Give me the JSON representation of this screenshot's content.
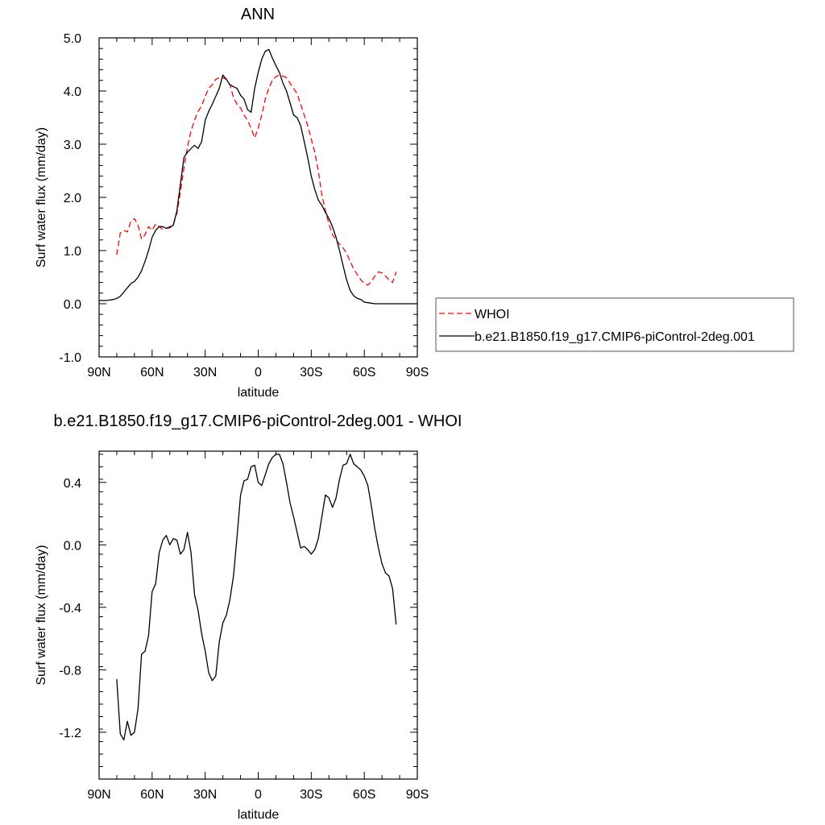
{
  "chart_data": [
    {
      "type": "line",
      "title": "ANN",
      "xlabel": "latitude",
      "ylabel": "Surf water flux (mm/day)",
      "xlim": [
        90,
        -90
      ],
      "ylim": [
        -1.0,
        5.0
      ],
      "x_ticks": [
        {
          "value": 90,
          "label": "90N"
        },
        {
          "value": 60,
          "label": "60N"
        },
        {
          "value": 30,
          "label": "30N"
        },
        {
          "value": 0,
          "label": "0"
        },
        {
          "value": -30,
          "label": "30S"
        },
        {
          "value": -60,
          "label": "60S"
        },
        {
          "value": -90,
          "label": "90S"
        }
      ],
      "y_ticks": [
        {
          "value": 5.0,
          "label": "5.0"
        },
        {
          "value": 4.0,
          "label": "4.0"
        },
        {
          "value": 3.0,
          "label": "3.0"
        },
        {
          "value": 2.0,
          "label": "2.0"
        },
        {
          "value": 1.0,
          "label": "1.0"
        },
        {
          "value": 0.0,
          "label": "0.0"
        },
        {
          "value": -1.0,
          "label": "-1.0"
        }
      ],
      "grid": false,
      "legend": "outside-right",
      "series": [
        {
          "name": "WHOI",
          "color": "#ff0000",
          "dash": "dashed",
          "x": [
            80,
            78,
            76,
            74,
            72,
            70,
            68,
            66,
            64,
            62,
            60,
            58,
            56,
            54,
            52,
            50,
            48,
            46,
            44,
            42,
            40,
            38,
            36,
            34,
            32,
            30,
            28,
            26,
            24,
            22,
            20,
            18,
            16,
            14,
            12,
            10,
            8,
            6,
            4,
            2,
            0,
            -2,
            -4,
            -6,
            -8,
            -10,
            -12,
            -14,
            -16,
            -18,
            -20,
            -22,
            -24,
            -26,
            -28,
            -30,
            -32,
            -34,
            -36,
            -38,
            -40,
            -42,
            -44,
            -46,
            -48,
            -50,
            -52,
            -54,
            -56,
            -58,
            -60,
            -62,
            -64,
            -66,
            -68,
            -70,
            -72,
            -74,
            -76,
            -78
          ],
          "y": [
            0.92,
            1.33,
            1.38,
            1.35,
            1.55,
            1.6,
            1.48,
            1.22,
            1.3,
            1.45,
            1.38,
            1.5,
            1.45,
            1.4,
            1.42,
            1.45,
            1.5,
            1.7,
            2.1,
            2.55,
            2.95,
            3.25,
            3.45,
            3.62,
            3.72,
            3.9,
            4.05,
            4.12,
            4.22,
            4.25,
            4.25,
            4.22,
            4.12,
            3.88,
            3.75,
            3.68,
            3.55,
            3.45,
            3.3,
            3.12,
            3.3,
            3.55,
            3.85,
            4.05,
            4.2,
            4.27,
            4.3,
            4.28,
            4.25,
            4.15,
            4.05,
            3.95,
            3.75,
            3.55,
            3.35,
            3.1,
            2.85,
            2.5,
            2.05,
            1.75,
            1.5,
            1.3,
            1.2,
            1.12,
            1.05,
            0.95,
            0.8,
            0.65,
            0.55,
            0.45,
            0.38,
            0.35,
            0.42,
            0.52,
            0.6,
            0.58,
            0.52,
            0.45,
            0.4,
            0.6
          ]
        },
        {
          "name": "b.e21.B1850.f19_g17.CMIP6-piControl-2deg.001",
          "color": "#000000",
          "dash": "solid",
          "x": [
            90,
            88,
            86,
            84,
            82,
            80,
            78,
            76,
            74,
            72,
            70,
            68,
            66,
            64,
            62,
            60,
            58,
            56,
            54,
            52,
            50,
            48,
            46,
            44,
            42,
            40,
            38,
            36,
            34,
            32,
            30,
            28,
            26,
            24,
            22,
            20,
            18,
            16,
            14,
            12,
            10,
            8,
            6,
            4,
            2,
            0,
            -2,
            -4,
            -6,
            -8,
            -10,
            -12,
            -14,
            -16,
            -18,
            -20,
            -22,
            -24,
            -26,
            -28,
            -30,
            -32,
            -34,
            -36,
            -38,
            -40,
            -42,
            -44,
            -46,
            -48,
            -50,
            -52,
            -54,
            -56,
            -58,
            -60,
            -62,
            -64,
            -66,
            -68,
            -70,
            -72,
            -74,
            -76,
            -78,
            -80,
            -82,
            -84,
            -86,
            -88,
            -90
          ],
          "y": [
            0.06,
            0.06,
            0.06,
            0.07,
            0.08,
            0.1,
            0.14,
            0.22,
            0.3,
            0.38,
            0.42,
            0.5,
            0.62,
            0.8,
            1.0,
            1.25,
            1.38,
            1.45,
            1.45,
            1.42,
            1.43,
            1.48,
            1.75,
            2.25,
            2.75,
            2.85,
            2.92,
            2.98,
            2.92,
            3.05,
            3.45,
            3.62,
            3.75,
            3.9,
            4.05,
            4.3,
            4.22,
            4.12,
            4.08,
            4.05,
            3.92,
            3.85,
            3.65,
            3.6,
            4.05,
            4.35,
            4.6,
            4.75,
            4.78,
            4.62,
            4.48,
            4.35,
            4.15,
            4.0,
            3.78,
            3.55,
            3.5,
            3.35,
            3.05,
            2.75,
            2.4,
            2.15,
            1.95,
            1.85,
            1.72,
            1.6,
            1.45,
            1.25,
            1.0,
            0.72,
            0.45,
            0.25,
            0.15,
            0.1,
            0.08,
            0.03,
            0.02,
            0.01,
            0.0,
            0.0,
            0.0,
            0.0,
            0.0,
            0.0,
            0.0,
            0.0,
            0.0,
            0.0,
            0.0,
            0.0,
            0.0
          ]
        }
      ]
    },
    {
      "type": "line",
      "title": "b.e21.B1850.f19_g17.CMIP6-piControl-2deg.001 - WHOI",
      "xlabel": "latitude",
      "ylabel": "Surf water flux (mm/day)",
      "xlim": [
        90,
        -90
      ],
      "ylim": [
        -1.5,
        0.6
      ],
      "x_ticks": [
        {
          "value": 90,
          "label": "90N"
        },
        {
          "value": 60,
          "label": "60N"
        },
        {
          "value": 30,
          "label": "30N"
        },
        {
          "value": 0,
          "label": "0"
        },
        {
          "value": -30,
          "label": "30S"
        },
        {
          "value": -60,
          "label": "60S"
        },
        {
          "value": -90,
          "label": "90S"
        }
      ],
      "y_ticks": [
        {
          "value": 0.4,
          "label": "0.4"
        },
        {
          "value": 0.0,
          "label": "0.0"
        },
        {
          "value": -0.4,
          "label": "-0.4"
        },
        {
          "value": -0.8,
          "label": "-0.8"
        },
        {
          "value": -1.2,
          "label": "-1.2"
        }
      ],
      "grid": false,
      "series": [
        {
          "color": "#000000",
          "dash": "solid",
          "x": [
            80,
            78,
            76,
            74,
            72,
            70,
            68,
            66,
            64,
            62,
            60,
            58,
            56,
            54,
            52,
            50,
            48,
            46,
            44,
            42,
            40,
            38,
            36,
            34,
            32,
            30,
            28,
            26,
            24,
            22,
            20,
            18,
            16,
            14,
            12,
            10,
            8,
            6,
            4,
            2,
            0,
            -2,
            -4,
            -6,
            -8,
            -10,
            -12,
            -14,
            -16,
            -18,
            -20,
            -22,
            -24,
            -26,
            -28,
            -30,
            -32,
            -34,
            -36,
            -38,
            -40,
            -42,
            -44,
            -46,
            -48,
            -50,
            -52,
            -54,
            -56,
            -58,
            -60,
            -62,
            -64,
            -66,
            -68,
            -70,
            -72,
            -74,
            -76,
            -78
          ],
          "y": [
            -0.86,
            -1.21,
            -1.25,
            -1.13,
            -1.22,
            -1.2,
            -1.05,
            -0.7,
            -0.68,
            -0.58,
            -0.3,
            -0.25,
            -0.05,
            0.03,
            0.06,
            0.0,
            0.04,
            0.03,
            -0.06,
            -0.03,
            0.08,
            -0.05,
            -0.32,
            -0.42,
            -0.57,
            -0.68,
            -0.82,
            -0.87,
            -0.84,
            -0.62,
            -0.5,
            -0.45,
            -0.35,
            -0.2,
            0.05,
            0.32,
            0.41,
            0.42,
            0.5,
            0.51,
            0.4,
            0.38,
            0.45,
            0.52,
            0.56,
            0.58,
            0.58,
            0.52,
            0.4,
            0.27,
            0.18,
            0.08,
            -0.02,
            -0.01,
            -0.03,
            -0.06,
            -0.03,
            0.04,
            0.18,
            0.32,
            0.3,
            0.24,
            0.3,
            0.42,
            0.51,
            0.52,
            0.58,
            0.52,
            0.5,
            0.48,
            0.44,
            0.38,
            0.25,
            0.1,
            -0.02,
            -0.12,
            -0.18,
            -0.2,
            -0.28,
            -0.51
          ]
        }
      ]
    }
  ]
}
